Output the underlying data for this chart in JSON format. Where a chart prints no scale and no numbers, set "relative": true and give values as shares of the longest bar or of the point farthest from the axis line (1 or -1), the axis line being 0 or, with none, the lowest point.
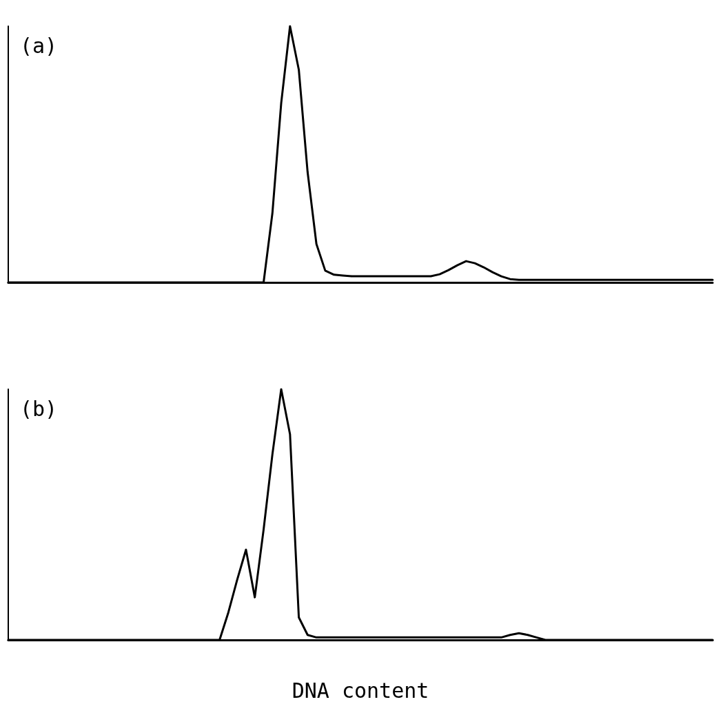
{
  "chart_data": [
    {
      "type": "line",
      "title": "(a)",
      "relative": true,
      "tick_labels": false,
      "color": "#000000",
      "categories": [
        null,
        null,
        null,
        null,
        null,
        null,
        null,
        null,
        null,
        null,
        null,
        null,
        null,
        null,
        null,
        null,
        null,
        null,
        null,
        null,
        null,
        null,
        null,
        null,
        null,
        null,
        null,
        null,
        null,
        null,
        null,
        null,
        null,
        null,
        null,
        null,
        null,
        null,
        null,
        null,
        null,
        null,
        null,
        null,
        null,
        null,
        null,
        null,
        null,
        null,
        null,
        null,
        null,
        null,
        null,
        null,
        null,
        null,
        null,
        null,
        null,
        null,
        null,
        null,
        null,
        null,
        null,
        null,
        null,
        null,
        null,
        null,
        null,
        null,
        null,
        null,
        null,
        null,
        null,
        null,
        null
      ],
      "values": [
        0,
        0,
        0,
        0,
        0,
        0,
        0,
        0,
        0,
        0,
        0,
        0,
        0,
        0,
        0,
        0,
        0,
        0,
        0,
        0,
        0,
        0,
        0,
        0,
        0,
        0,
        0,
        0,
        0,
        0,
        0.27,
        0.7,
        1,
        0.83,
        0.43,
        0.15,
        0.046,
        0.03,
        0.027,
        0.024,
        0.024,
        0.024,
        0.024,
        0.024,
        0.024,
        0.024,
        0.024,
        0.024,
        0.024,
        0.032,
        0.048,
        0.067,
        0.083,
        0.075,
        0.059,
        0.04,
        0.024,
        0.013,
        0.01,
        0.01,
        0.01,
        0.01,
        0.01,
        0.01,
        0.01,
        0.01,
        0.01,
        0.01,
        0.01,
        0.01,
        0.01,
        0.01,
        0.01,
        0.01,
        0.01,
        0.01,
        0.01,
        0.01,
        0.01,
        0.01,
        0.01
      ]
    },
    {
      "type": "line",
      "title": "(b)",
      "xlabel": "DNA content",
      "relative": true,
      "tick_labels": false,
      "color": "#000000",
      "categories": [
        null,
        null,
        null,
        null,
        null,
        null,
        null,
        null,
        null,
        null,
        null,
        null,
        null,
        null,
        null,
        null,
        null,
        null,
        null,
        null,
        null,
        null,
        null,
        null,
        null,
        null,
        null,
        null,
        null,
        null,
        null,
        null,
        null,
        null,
        null,
        null,
        null,
        null,
        null,
        null,
        null,
        null,
        null,
        null,
        null,
        null,
        null,
        null,
        null,
        null,
        null,
        null,
        null,
        null,
        null,
        null,
        null,
        null,
        null,
        null,
        null,
        null,
        null,
        null,
        null,
        null,
        null,
        null,
        null,
        null,
        null,
        null,
        null,
        null,
        null,
        null,
        null,
        null,
        null,
        null,
        null
      ],
      "values": [
        0,
        0,
        0,
        0,
        0,
        0,
        0,
        0,
        0,
        0,
        0,
        0,
        0,
        0,
        0,
        0,
        0,
        0,
        0,
        0,
        0,
        0,
        0,
        0,
        0,
        0.11,
        0.24,
        0.36,
        0.17,
        0.44,
        0.74,
        1,
        0.82,
        0.09,
        0.02,
        0.01,
        0.01,
        0.01,
        0.01,
        0.01,
        0.01,
        0.01,
        0.01,
        0.01,
        0.01,
        0.01,
        0.01,
        0.01,
        0.01,
        0.01,
        0.01,
        0.01,
        0.01,
        0.01,
        0.01,
        0.01,
        0.01,
        0.02,
        0.027,
        0.02,
        0.01,
        0,
        0,
        0,
        0,
        0,
        0,
        0,
        0,
        0,
        0,
        0,
        0,
        0,
        0,
        0,
        0,
        0,
        0,
        0,
        0
      ]
    }
  ]
}
